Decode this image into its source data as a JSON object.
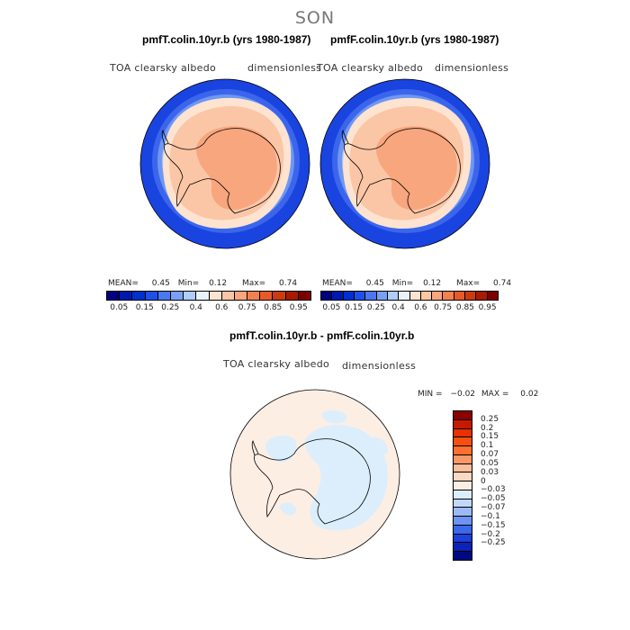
{
  "figure": {
    "season": "SON"
  },
  "panels": [
    {
      "title": "pmfT.colin.10yr.b (yrs 1980-1987)",
      "variable": "TOA clearsky albedo",
      "units": "dimensionless",
      "stats": {
        "mean_label": "MEAN=",
        "mean": "0.45",
        "min_label": "Min=",
        "min": "0.12",
        "max_label": "Max=",
        "max": "0.74"
      }
    },
    {
      "title": "pmfF.colin.10yr.b (yrs 1980-1987)",
      "variable": "TOA clearsky albedo",
      "units": "dimensionless",
      "stats": {
        "mean_label": "MEAN=",
        "mean": "0.45",
        "min_label": "Min=",
        "min": "0.12",
        "max_label": "Max=",
        "max": "0.74"
      }
    }
  ],
  "colorbar": {
    "colors": [
      "#000080",
      "#0018b0",
      "#0030d0",
      "#1e50e8",
      "#4a78f0",
      "#7aa0f4",
      "#b0ccf8",
      "#e8f2fc",
      "#fde3d0",
      "#fbc6a6",
      "#f8a67e",
      "#f3804f",
      "#e65a2a",
      "#cc3a0f",
      "#a81b03",
      "#7d0000"
    ],
    "labels": [
      "0.05",
      "0.15",
      "0.25",
      "0.4",
      "0.6",
      "0.75",
      "0.85",
      "0.95"
    ]
  },
  "diff_panel": {
    "title": "pmfT.colin.10yr.b - pmfF.colin.10yr.b",
    "variable": "TOA clearsky albedo",
    "units": "dimensionless",
    "stats": {
      "min_label": "MIN =",
      "min": "−0.02",
      "max_label": "MAX =",
      "max": "0.02"
    },
    "colors": [
      "#8b0000",
      "#c41a00",
      "#e83000",
      "#f55010",
      "#ff7030",
      "#f89868",
      "#fbbe9a",
      "#fdd9c2",
      "#fdeee4",
      "#dceefc",
      "#c2d8fa",
      "#9cbaf6",
      "#6e94f2",
      "#3c68ec",
      "#1c40dc",
      "#0d22b8",
      "#000a80"
    ],
    "labels": [
      "0.25",
      "0.2",
      "0.15",
      "0.1",
      "0.07",
      "0.05",
      "0.03",
      "0",
      "−0.03",
      "−0.05",
      "−0.07",
      "−0.1",
      "−0.15",
      "−0.2",
      "−0.25"
    ]
  }
}
